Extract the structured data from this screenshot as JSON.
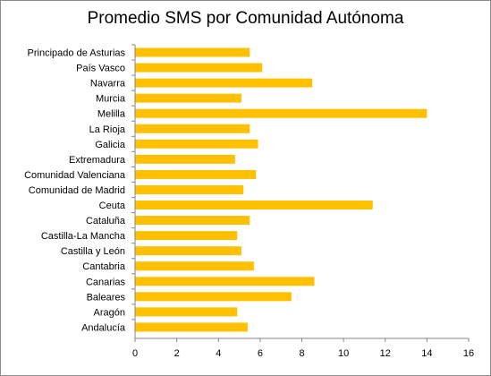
{
  "chart_data": {
    "type": "bar",
    "orientation": "horizontal",
    "title": "Promedio SMS por Comunidad Autónoma",
    "xlabel": "",
    "ylabel": "",
    "xlim": [
      0,
      16
    ],
    "x_ticks": [
      0,
      2,
      4,
      6,
      8,
      10,
      12,
      14,
      16
    ],
    "grid": false,
    "legend": "none",
    "bar_color": "#FFC000",
    "categories": [
      "Principado de Asturias",
      "País Vasco",
      "Navarra",
      "Murcia",
      "Melilla",
      "La Rioja",
      "Galicia",
      "Extremadura",
      "Comunidad Valenciana",
      "Comunidad de Madrid",
      "Ceuta",
      "Cataluña",
      "Castilla-La Mancha",
      "Castilla y León",
      "Cantabria",
      "Canarias",
      "Baleares",
      "Aragón",
      "Andalucía"
    ],
    "values": [
      5.5,
      6.1,
      8.5,
      5.1,
      14.0,
      5.5,
      5.9,
      4.8,
      5.8,
      5.2,
      11.4,
      5.5,
      4.9,
      5.1,
      5.7,
      8.6,
      7.5,
      4.9,
      5.4
    ]
  }
}
